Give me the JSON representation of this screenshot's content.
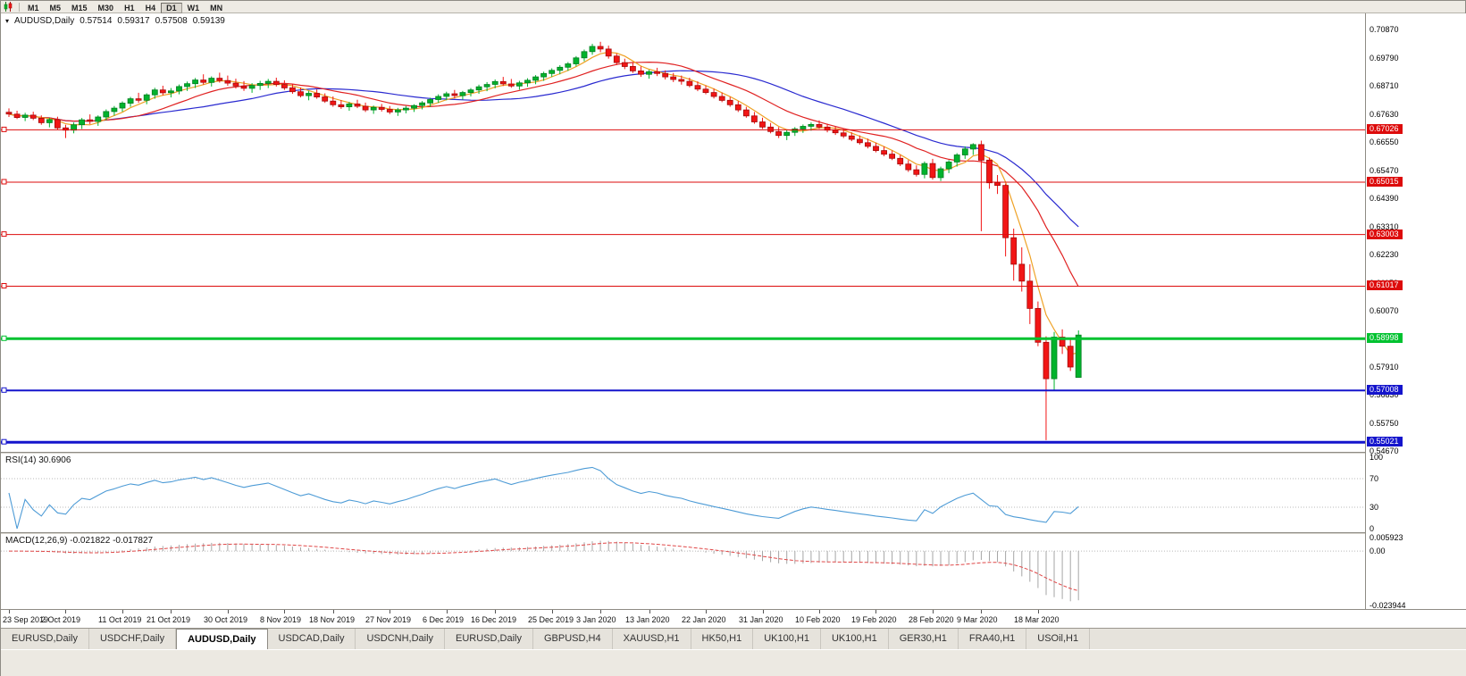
{
  "toolbar": {
    "timeframes": [
      {
        "label": "M1",
        "active": false
      },
      {
        "label": "M5",
        "active": false
      },
      {
        "label": "M15",
        "active": false
      },
      {
        "label": "M30",
        "active": false
      },
      {
        "label": "H1",
        "active": false
      },
      {
        "label": "H4",
        "active": false
      },
      {
        "label": "D1",
        "active": true
      },
      {
        "label": "W1",
        "active": false
      },
      {
        "label": "MN",
        "active": false
      }
    ]
  },
  "chart": {
    "symbol": "AUDUSD,Daily",
    "open": "0.57514",
    "high": "0.59317",
    "low": "0.57508",
    "close": "0.59139"
  },
  "price_axis": {
    "labels": [
      "0.70870",
      "0.69790",
      "0.68710",
      "0.67630",
      "0.66550",
      "0.65470",
      "0.64390",
      "0.63310",
      "0.62230",
      "0.61150",
      "0.60070",
      "0.58990",
      "0.57910",
      "0.56830",
      "0.55750",
      "0.54670"
    ]
  },
  "chart_data": {
    "type": "candlestick",
    "symbol": "AUDUSD",
    "timeframe": "Daily",
    "ylim": [
      0.5465,
      0.715
    ],
    "up_color": "#00b32c",
    "up_border": "#007d1f",
    "down_color": "#f21515",
    "down_border": "#a30b0b",
    "candles": [
      [
        0.677,
        0.6785,
        0.6752,
        0.6763
      ],
      [
        0.6763,
        0.6776,
        0.6744,
        0.675
      ],
      [
        0.675,
        0.6768,
        0.6736,
        0.6759
      ],
      [
        0.6759,
        0.6772,
        0.674,
        0.6747
      ],
      [
        0.6747,
        0.6758,
        0.6722,
        0.673
      ],
      [
        0.673,
        0.6749,
        0.6712,
        0.6742
      ],
      [
        0.6742,
        0.6753,
        0.6702,
        0.671
      ],
      [
        0.671,
        0.6722,
        0.6671,
        0.6701
      ],
      [
        0.6701,
        0.6731,
        0.6689,
        0.6722
      ],
      [
        0.6722,
        0.6748,
        0.6706,
        0.6741
      ],
      [
        0.6741,
        0.6762,
        0.6724,
        0.6735
      ],
      [
        0.6735,
        0.6758,
        0.6718,
        0.6752
      ],
      [
        0.6752,
        0.6781,
        0.6739,
        0.6773
      ],
      [
        0.6773,
        0.6794,
        0.6757,
        0.6786
      ],
      [
        0.6786,
        0.6812,
        0.6772,
        0.6805
      ],
      [
        0.6805,
        0.6829,
        0.6791,
        0.6822
      ],
      [
        0.6822,
        0.6845,
        0.6806,
        0.6816
      ],
      [
        0.6816,
        0.6843,
        0.6801,
        0.6837
      ],
      [
        0.6837,
        0.6864,
        0.6822,
        0.6856
      ],
      [
        0.6856,
        0.6872,
        0.6835,
        0.6845
      ],
      [
        0.6845,
        0.6863,
        0.6827,
        0.6852
      ],
      [
        0.6852,
        0.6877,
        0.6839,
        0.6869
      ],
      [
        0.6869,
        0.6888,
        0.6852,
        0.688
      ],
      [
        0.688,
        0.6902,
        0.6863,
        0.6894
      ],
      [
        0.6894,
        0.6916,
        0.6876,
        0.6885
      ],
      [
        0.6885,
        0.6908,
        0.6869,
        0.6901
      ],
      [
        0.6901,
        0.6922,
        0.6884,
        0.6892
      ],
      [
        0.6892,
        0.6911,
        0.6872,
        0.6882
      ],
      [
        0.6882,
        0.6899,
        0.6861,
        0.6871
      ],
      [
        0.6871,
        0.689,
        0.6852,
        0.6862
      ],
      [
        0.6862,
        0.6882,
        0.6845,
        0.6873
      ],
      [
        0.6873,
        0.6891,
        0.6856,
        0.6881
      ],
      [
        0.6881,
        0.6898,
        0.6863,
        0.6889
      ],
      [
        0.6889,
        0.6903,
        0.6869,
        0.6877
      ],
      [
        0.6877,
        0.6893,
        0.6856,
        0.6864
      ],
      [
        0.6864,
        0.6878,
        0.6841,
        0.6849
      ],
      [
        0.6849,
        0.6865,
        0.6827,
        0.6834
      ],
      [
        0.6834,
        0.6852,
        0.6816,
        0.6843
      ],
      [
        0.6843,
        0.6858,
        0.6822,
        0.6829
      ],
      [
        0.6829,
        0.6843,
        0.6806,
        0.6813
      ],
      [
        0.6813,
        0.6831,
        0.6791,
        0.6799
      ],
      [
        0.6799,
        0.6817,
        0.6783,
        0.6791
      ],
      [
        0.6791,
        0.681,
        0.6776,
        0.6802
      ],
      [
        0.6802,
        0.6818,
        0.6786,
        0.6793
      ],
      [
        0.6793,
        0.6807,
        0.6771,
        0.6779
      ],
      [
        0.6779,
        0.6796,
        0.6764,
        0.6789
      ],
      [
        0.6789,
        0.6802,
        0.6773,
        0.6781
      ],
      [
        0.6781,
        0.6794,
        0.6763,
        0.6771
      ],
      [
        0.6771,
        0.6787,
        0.6756,
        0.6779
      ],
      [
        0.6779,
        0.6794,
        0.6766,
        0.6786
      ],
      [
        0.6786,
        0.6801,
        0.6771,
        0.6796
      ],
      [
        0.6796,
        0.6813,
        0.6781,
        0.6806
      ],
      [
        0.6806,
        0.6826,
        0.6791,
        0.6819
      ],
      [
        0.6819,
        0.6839,
        0.6806,
        0.6831
      ],
      [
        0.6831,
        0.6849,
        0.6816,
        0.6841
      ],
      [
        0.6841,
        0.6856,
        0.6823,
        0.6834
      ],
      [
        0.6834,
        0.6852,
        0.6819,
        0.6846
      ],
      [
        0.6846,
        0.6863,
        0.6831,
        0.6856
      ],
      [
        0.6856,
        0.6876,
        0.6841,
        0.6868
      ],
      [
        0.6868,
        0.6886,
        0.6851,
        0.6877
      ],
      [
        0.6877,
        0.6896,
        0.6862,
        0.6888
      ],
      [
        0.6888,
        0.6906,
        0.6871,
        0.6879
      ],
      [
        0.6879,
        0.6898,
        0.6864,
        0.6871
      ],
      [
        0.6871,
        0.6891,
        0.6857,
        0.6883
      ],
      [
        0.6883,
        0.6901,
        0.6868,
        0.6893
      ],
      [
        0.6893,
        0.6913,
        0.6878,
        0.6906
      ],
      [
        0.6906,
        0.6926,
        0.6891,
        0.6919
      ],
      [
        0.6919,
        0.6939,
        0.6906,
        0.6931
      ],
      [
        0.6931,
        0.6951,
        0.6916,
        0.6943
      ],
      [
        0.6943,
        0.6963,
        0.6929,
        0.6956
      ],
      [
        0.6956,
        0.6986,
        0.6946,
        0.6979
      ],
      [
        0.6979,
        0.7011,
        0.6966,
        0.7003
      ],
      [
        0.7003,
        0.7033,
        0.6991,
        0.7023
      ],
      [
        0.7023,
        0.7041,
        0.7001,
        0.7013
      ],
      [
        0.7013,
        0.7026,
        0.6976,
        0.6986
      ],
      [
        0.6986,
        0.6996,
        0.6951,
        0.6961
      ],
      [
        0.6961,
        0.6976,
        0.6936,
        0.6946
      ],
      [
        0.6946,
        0.6961,
        0.6921,
        0.6929
      ],
      [
        0.6929,
        0.6946,
        0.6906,
        0.6916
      ],
      [
        0.6916,
        0.6933,
        0.6899,
        0.6926
      ],
      [
        0.6926,
        0.6941,
        0.6909,
        0.6919
      ],
      [
        0.6919,
        0.6931,
        0.6896,
        0.6906
      ],
      [
        0.6906,
        0.6921,
        0.6886,
        0.6896
      ],
      [
        0.6896,
        0.6911,
        0.6876,
        0.6889
      ],
      [
        0.6889,
        0.6903,
        0.6866,
        0.6873
      ],
      [
        0.6873,
        0.6889,
        0.6851,
        0.6859
      ],
      [
        0.6859,
        0.6873,
        0.6839,
        0.6846
      ],
      [
        0.6846,
        0.6861,
        0.6823,
        0.6831
      ],
      [
        0.6831,
        0.6846,
        0.6809,
        0.6816
      ],
      [
        0.6816,
        0.6829,
        0.6791,
        0.6799
      ],
      [
        0.6799,
        0.6813,
        0.6771,
        0.6779
      ],
      [
        0.6779,
        0.6791,
        0.6749,
        0.6756
      ],
      [
        0.6756,
        0.6771,
        0.6726,
        0.6733
      ],
      [
        0.6733,
        0.6749,
        0.6706,
        0.6713
      ],
      [
        0.6713,
        0.6729,
        0.6689,
        0.6696
      ],
      [
        0.6696,
        0.6713,
        0.6671,
        0.6681
      ],
      [
        0.6681,
        0.6701,
        0.6663,
        0.6693
      ],
      [
        0.6693,
        0.6713,
        0.6679,
        0.6706
      ],
      [
        0.6706,
        0.6723,
        0.6691,
        0.6716
      ],
      [
        0.6716,
        0.6731,
        0.6699,
        0.6723
      ],
      [
        0.6723,
        0.6739,
        0.6706,
        0.6713
      ],
      [
        0.6713,
        0.6726,
        0.6693,
        0.6701
      ],
      [
        0.6701,
        0.6716,
        0.6683,
        0.6691
      ],
      [
        0.6691,
        0.6706,
        0.6671,
        0.6679
      ],
      [
        0.6679,
        0.6693,
        0.6659,
        0.6666
      ],
      [
        0.6666,
        0.6681,
        0.6646,
        0.6653
      ],
      [
        0.6653,
        0.6669,
        0.6631,
        0.6639
      ],
      [
        0.6639,
        0.6653,
        0.6616,
        0.6623
      ],
      [
        0.6623,
        0.6639,
        0.6601,
        0.6609
      ],
      [
        0.6609,
        0.6623,
        0.6586,
        0.6593
      ],
      [
        0.6593,
        0.6606,
        0.6563,
        0.6571
      ],
      [
        0.6571,
        0.6586,
        0.6541,
        0.6549
      ],
      [
        0.6549,
        0.6566,
        0.6523,
        0.6531
      ],
      [
        0.6531,
        0.6581,
        0.6516,
        0.6573
      ],
      [
        0.6573,
        0.6591,
        0.6511,
        0.6519
      ],
      [
        0.6519,
        0.6561,
        0.6506,
        0.6553
      ],
      [
        0.6553,
        0.6586,
        0.6536,
        0.6579
      ],
      [
        0.6579,
        0.6613,
        0.6561,
        0.6606
      ],
      [
        0.6606,
        0.6639,
        0.6591,
        0.6629
      ],
      [
        0.6629,
        0.6651,
        0.6606,
        0.6646
      ],
      [
        0.6646,
        0.6661,
        0.6313,
        0.6586
      ],
      [
        0.6586,
        0.6596,
        0.6476,
        0.6499
      ],
      [
        0.6499,
        0.6529,
        0.6456,
        0.6489
      ],
      [
        0.6489,
        0.6496,
        0.6216,
        0.6288
      ],
      [
        0.6288,
        0.6323,
        0.6123,
        0.6186
      ],
      [
        0.6186,
        0.6251,
        0.6081,
        0.6121
      ],
      [
        0.6121,
        0.6186,
        0.5956,
        0.6016
      ],
      [
        0.6016,
        0.6043,
        0.5871,
        0.5886
      ],
      [
        0.5886,
        0.5909,
        0.551,
        0.5746
      ],
      [
        0.5746,
        0.5926,
        0.5701,
        0.5906
      ],
      [
        0.5906,
        0.5936,
        0.5841,
        0.5871
      ],
      [
        0.5871,
        0.5896,
        0.5776,
        0.5791
      ],
      [
        0.57514,
        0.59317,
        0.57508,
        0.59139
      ]
    ],
    "overlays": [
      {
        "name": "ma-slow",
        "method": "sma",
        "period": 25,
        "color": "#2a2ad0"
      },
      {
        "name": "ma-medium",
        "method": "sma",
        "period": 13,
        "color": "#e02222"
      },
      {
        "name": "ma-fast",
        "method": "sma",
        "period": 5,
        "color": "#efa226"
      }
    ],
    "hlines": [
      {
        "label": "0.67026",
        "price": 0.67026,
        "color": "#dd0b0b",
        "width": 1
      },
      {
        "label": "0.65015",
        "price": 0.65015,
        "color": "#dd0b0b",
        "width": 1
      },
      {
        "label": "0.63003",
        "price": 0.63003,
        "color": "#dd0b0b",
        "width": 1
      },
      {
        "label": "0.61017",
        "price": 0.61017,
        "color": "#dd0b0b",
        "width": 1
      },
      {
        "label": "0.58998",
        "price": 0.58998,
        "color": "#00c230",
        "width": 3
      },
      {
        "label": "0.57008",
        "price": 0.57008,
        "color": "#1414cc",
        "width": 2
      },
      {
        "label": "0.55021",
        "price": 0.55021,
        "color": "#1414cc",
        "width": 3
      }
    ],
    "date_ticks": [
      {
        "label": "23 Sep 2019",
        "i": 0
      },
      {
        "label": "2 Oct 2019",
        "i": 7
      },
      {
        "label": "11 Oct 2019",
        "i": 14
      },
      {
        "label": "21 Oct 2019",
        "i": 20
      },
      {
        "label": "30 Oct 2019",
        "i": 27
      },
      {
        "label": "8 Nov 2019",
        "i": 34
      },
      {
        "label": "18 Nov 2019",
        "i": 40
      },
      {
        "label": "27 Nov 2019",
        "i": 47
      },
      {
        "label": "6 Dec 2019",
        "i": 54
      },
      {
        "label": "16 Dec 2019",
        "i": 60
      },
      {
        "label": "25 Dec 2019",
        "i": 67
      },
      {
        "label": "3 Jan 2020",
        "i": 73
      },
      {
        "label": "13 Jan 2020",
        "i": 79
      },
      {
        "label": "22 Jan 2020",
        "i": 86
      },
      {
        "label": "31 Jan 2020",
        "i": 93
      },
      {
        "label": "10 Feb 2020",
        "i": 100
      },
      {
        "label": "19 Feb 2020",
        "i": 107
      },
      {
        "label": "28 Feb 2020",
        "i": 114
      },
      {
        "label": "9 Mar 2020",
        "i": 120
      },
      {
        "label": "18 Mar 2020",
        "i": 127
      }
    ]
  },
  "rsi": {
    "title": "RSI(14) 30.6906",
    "period": 14,
    "color": "#4d9bd6",
    "levels": [
      70,
      30
    ],
    "scale": [
      "100",
      "70",
      "30",
      "0"
    ]
  },
  "macd": {
    "title": "MACD(12,26,9) -0.021822 -0.017827",
    "range": [
      -0.023944,
      0.005923
    ],
    "scale": [
      "0.005923",
      "0.00",
      "-0.023944"
    ],
    "histogram_color": "#a6a6a6",
    "signal_color": "#e04848"
  },
  "tabs": [
    {
      "label": "EURUSD,Daily",
      "active": false
    },
    {
      "label": "USDCHF,Daily",
      "active": false
    },
    {
      "label": "AUDUSD,Daily",
      "active": true
    },
    {
      "label": "USDCAD,Daily",
      "active": false
    },
    {
      "label": "USDCNH,Daily",
      "active": false
    },
    {
      "label": "EURUSD,Daily",
      "active": false
    },
    {
      "label": "GBPUSD,H4",
      "active": false
    },
    {
      "label": "XAUUSD,H1",
      "active": false
    },
    {
      "label": "HK50,H1",
      "active": false
    },
    {
      "label": "UK100,H1",
      "active": false
    },
    {
      "label": "UK100,H1",
      "active": false
    },
    {
      "label": "GER30,H1",
      "active": false
    },
    {
      "label": "FRA40,H1",
      "active": false
    },
    {
      "label": "USOil,H1",
      "active": false
    }
  ],
  "icons": {
    "toolbar_icon": "candlestick-chart-icon",
    "symbol_marker": "down-arrow-icon"
  }
}
